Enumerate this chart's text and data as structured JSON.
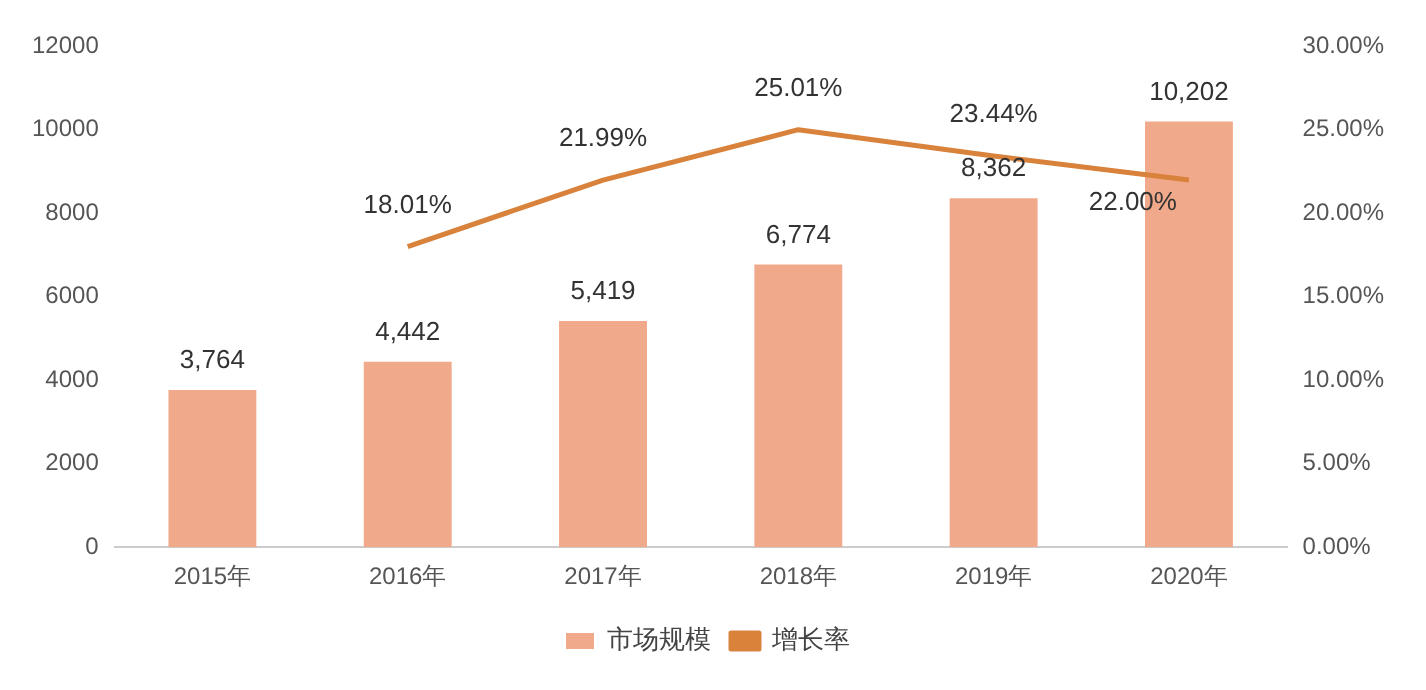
{
  "chart_data": {
    "type": "bar",
    "categories": [
      "2015年",
      "2016年",
      "2017年",
      "2018年",
      "2019年",
      "2020年"
    ],
    "series": [
      {
        "name": "市场规模",
        "color": "#f0a98a",
        "values": [
          3764,
          4442,
          5419,
          6774,
          8362,
          10202
        ],
        "value_labels": [
          "3,764",
          "4,442",
          "5,419",
          "6,774",
          "8,362",
          "10,202"
        ]
      },
      {
        "name": "增长率",
        "type": "line",
        "axis": "y2",
        "color": "#d9823b",
        "values": [
          null,
          18.01,
          21.99,
          25.01,
          23.44,
          22.0
        ],
        "value_labels": [
          null,
          "18.01%",
          "21.99%",
          "25.01%",
          "23.44%",
          "22.00%"
        ]
      }
    ],
    "ylim": [
      0,
      12000
    ],
    "yticks": [
      0,
      2000,
      4000,
      6000,
      8000,
      10000,
      12000
    ],
    "y2lim": [
      0,
      30
    ],
    "y2ticks": [
      {
        "value": 0,
        "label": "0.00%"
      },
      {
        "value": 5,
        "label": "5.00%"
      },
      {
        "value": 10,
        "label": "10.00%"
      },
      {
        "value": 15,
        "label": "15.00%"
      },
      {
        "value": 20,
        "label": "20.00%"
      },
      {
        "value": 25,
        "label": "25.00%"
      },
      {
        "value": 30,
        "label": "30.00%"
      }
    ],
    "grid": false,
    "legend": "bottom",
    "marker": "none",
    "line_style": "solid"
  }
}
